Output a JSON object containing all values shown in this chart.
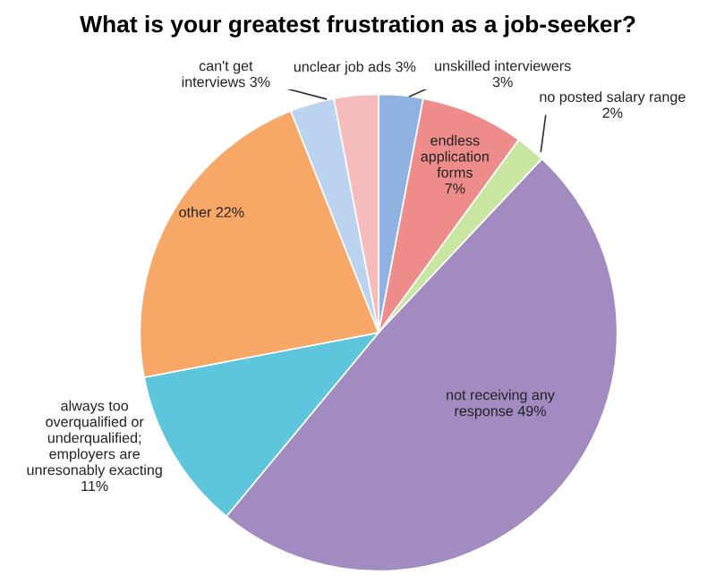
{
  "chart_data": {
    "type": "pie",
    "title": "What is your greatest frustration as a job-seeker?",
    "categories": [
      "unskilled interviewers",
      "endless\napplication\nforms",
      "no posted salary range",
      "not receiving any\nresponse",
      "always too\noverqualified or\nunderqualified;\nemployers are\nunresonably exacting",
      "other",
      "can't get\ninterviews",
      "unclear job ads"
    ],
    "values": [
      3,
      7,
      2,
      49,
      11,
      22,
      3,
      3
    ],
    "value_labels": [
      "3%",
      "7%",
      "2%",
      "49%",
      "11%",
      "22%",
      "3%",
      "3%"
    ],
    "colors": [
      "#8fb2e3",
      "#ee8c8c",
      "#c8e6a0",
      "#a18bc0",
      "#5ec6dc",
      "#f7a766",
      "#bcd3f0",
      "#f6bcbc"
    ]
  }
}
